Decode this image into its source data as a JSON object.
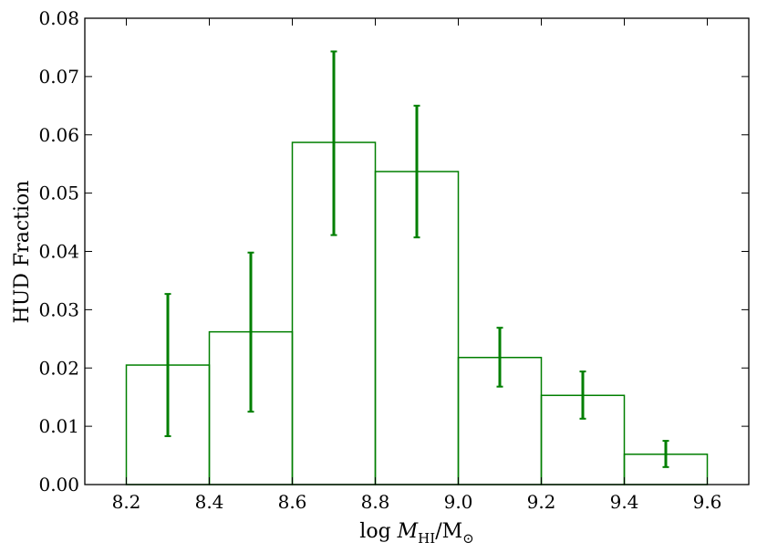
{
  "chart_data": {
    "type": "bar",
    "subtype": "step-histogram-with-error-bars",
    "bin_edges": [
      8.2,
      8.4,
      8.6,
      8.8,
      9.0,
      9.2,
      9.4,
      9.6
    ],
    "bin_centers": [
      8.3,
      8.5,
      8.7,
      8.9,
      9.1,
      9.3,
      9.5
    ],
    "values": [
      0.0205,
      0.0262,
      0.0587,
      0.0537,
      0.0218,
      0.0153,
      0.0052
    ],
    "error_lower": [
      0.0083,
      0.0125,
      0.0428,
      0.0424,
      0.0168,
      0.0113,
      0.003
    ],
    "error_upper": [
      0.0327,
      0.0398,
      0.0743,
      0.065,
      0.0269,
      0.0194,
      0.0075
    ],
    "xlim": [
      8.1,
      9.7
    ],
    "ylim": [
      0.0,
      0.08
    ],
    "x_ticks": [
      "8.2",
      "8.4",
      "8.6",
      "8.8",
      "9.0",
      "9.2",
      "9.4",
      "9.6"
    ],
    "y_ticks": [
      "0.00",
      "0.01",
      "0.02",
      "0.03",
      "0.04",
      "0.05",
      "0.06",
      "0.07",
      "0.08"
    ],
    "xlabel": "log M_HI/M_⊙",
    "ylabel": "HUD Fraction",
    "title": "",
    "grid": false,
    "color": "#007f00"
  }
}
